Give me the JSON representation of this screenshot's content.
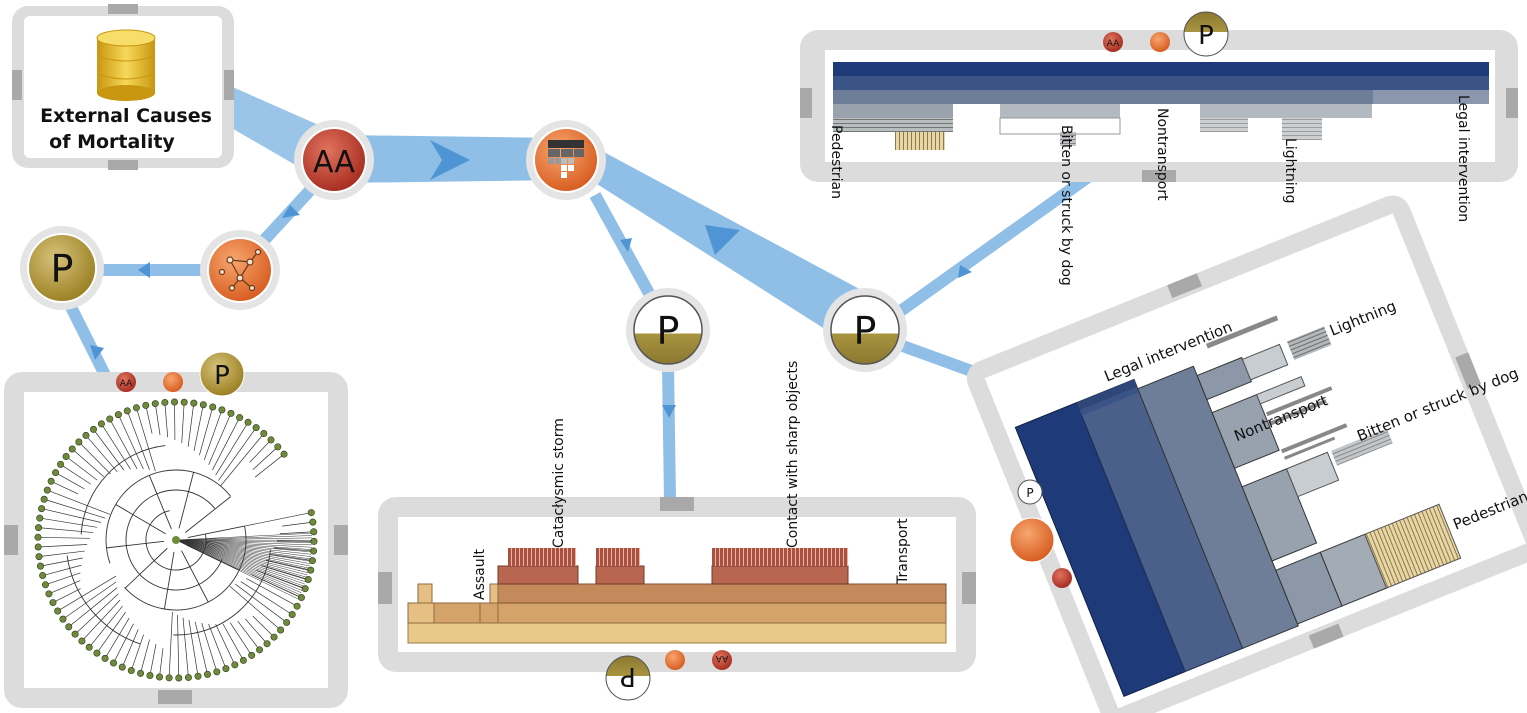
{
  "colors": {
    "flow": "#8fbfe6",
    "flow_dark": "#4f95d6",
    "panel_frame": "#dcdcdc",
    "panel_tab": "#a9a9a9",
    "analytics_red": "#c84232",
    "partition_orange": "#ea7b3c",
    "projection_gold": "#b59a36",
    "db_gold": "#e2b628",
    "navy": "#1f3a78",
    "steel": "#8b97a8",
    "tan": "#e6c98a",
    "brown": "#a8563f"
  },
  "source": {
    "label_line1": "External Causes",
    "label_line2": "of Mortality",
    "icon": "database-icon"
  },
  "nodes": {
    "aggregation": {
      "label": "AA",
      "icon": "aggregate-icon"
    },
    "hierarchy": {
      "icon": "hierarchy-icon"
    },
    "network": {
      "icon": "network-graph-icon"
    },
    "projection_left": {
      "label": "P"
    },
    "projection_mid": {
      "label": "P"
    },
    "projection_right": {
      "label": "P"
    }
  },
  "mini_badges": {
    "aa": "AA",
    "p": "P"
  },
  "top_panel": {
    "labels": [
      "Pedestrian",
      "Bitten or struck by dog",
      "Nontransport",
      "Lightning",
      "Legal intervention"
    ]
  },
  "bottom_panel": {
    "labels": [
      "Assault",
      "Catacłysmic storm",
      "Contact with sharp objects",
      "Transport"
    ]
  },
  "right_panel": {
    "labels": [
      "Legal intervention",
      "Lightning",
      "Nontransport",
      "Bitten or struck by dog",
      "Pedestrian"
    ]
  }
}
